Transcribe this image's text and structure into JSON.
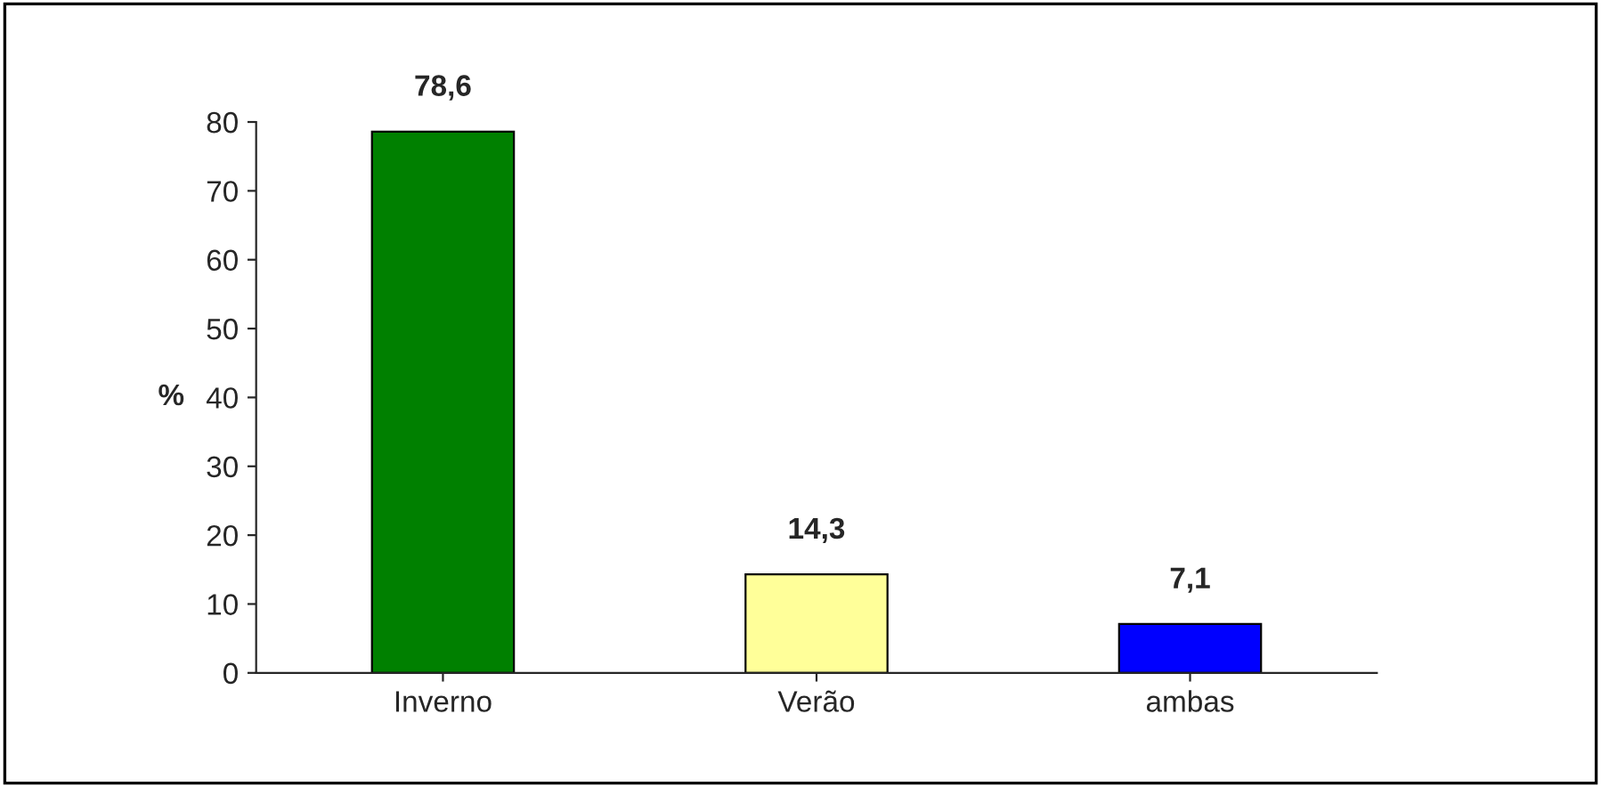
{
  "chart_data": {
    "type": "bar",
    "ylabel": "%",
    "categories": [
      "Inverno",
      "Verão",
      "ambas"
    ],
    "values": [
      78.6,
      14.3,
      7.1
    ],
    "colors": [
      "#008000",
      "#ffff99",
      "#0000ff"
    ],
    "value_labels": [
      "78,6",
      "14,3",
      "7,1"
    ],
    "ylim": [
      0,
      80
    ],
    "yticks": [
      0,
      10,
      20,
      30,
      40,
      50,
      60,
      70,
      80
    ],
    "grid": false,
    "legend": false
  }
}
